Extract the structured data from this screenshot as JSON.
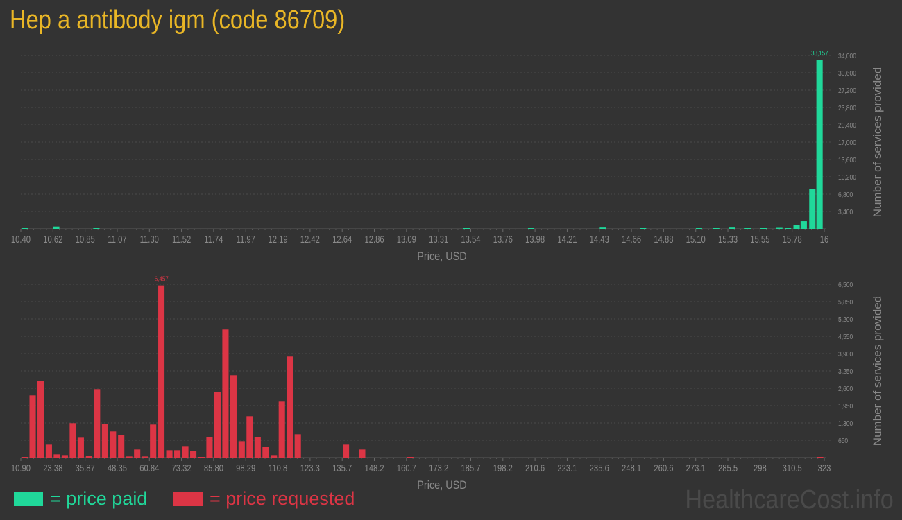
{
  "title": "Hep a antibody igm (code 86709)",
  "legend": {
    "paid_label": "= price paid",
    "requested_label": "= price requested"
  },
  "watermark": "HealthcareCost.info",
  "colors": {
    "paid": "#20d89a",
    "requested": "#dc3545",
    "title": "#e9b626",
    "background": "#333333"
  },
  "chart_data": [
    {
      "type": "bar",
      "series_role": "price paid",
      "xlabel": "Price, USD",
      "ylabel": "Number of services provided",
      "xlim": [
        10.4,
        16
      ],
      "ylim": [
        0,
        34000
      ],
      "grid": true,
      "x_ticks": [
        "10.40",
        "10.62",
        "10.85",
        "11.07",
        "11.30",
        "11.52",
        "11.74",
        "11.97",
        "12.19",
        "12.42",
        "12.64",
        "12.86",
        "13.09",
        "13.31",
        "13.54",
        "13.76",
        "13.98",
        "14.21",
        "14.43",
        "14.66",
        "14.88",
        "15.10",
        "15.33",
        "15.55",
        "15.78",
        "16"
      ],
      "y_ticks": [
        3400,
        6800,
        10200,
        13600,
        17000,
        20400,
        23800,
        27200,
        30600,
        34000
      ],
      "y_tick_labels": [
        "3,400",
        "6,800",
        "10,200",
        "13,600",
        "17,000",
        "20,400",
        "23,800",
        "27,200",
        "30,600",
        "34,000"
      ],
      "max_label": "33,157",
      "bin_width": 0.056,
      "bars": [
        {
          "x": 10.4,
          "y": 120
        },
        {
          "x": 10.62,
          "y": 450
        },
        {
          "x": 10.9,
          "y": 120
        },
        {
          "x": 13.48,
          "y": 120
        },
        {
          "x": 13.93,
          "y": 120
        },
        {
          "x": 14.43,
          "y": 250
        },
        {
          "x": 14.71,
          "y": 110
        },
        {
          "x": 15.1,
          "y": 110
        },
        {
          "x": 15.22,
          "y": 110
        },
        {
          "x": 15.33,
          "y": 250
        },
        {
          "x": 15.44,
          "y": 110
        },
        {
          "x": 15.55,
          "y": 110
        },
        {
          "x": 15.66,
          "y": 200
        },
        {
          "x": 15.72,
          "y": 110
        },
        {
          "x": 15.78,
          "y": 813
        },
        {
          "x": 15.83,
          "y": 1490
        },
        {
          "x": 15.89,
          "y": 7766
        },
        {
          "x": 15.94,
          "y": 33157
        }
      ]
    },
    {
      "type": "bar",
      "series_role": "price requested",
      "xlabel": "Price, USD",
      "ylabel": "Number of services provided",
      "xlim": [
        10.9,
        323
      ],
      "ylim": [
        0,
        6500
      ],
      "grid": true,
      "x_ticks": [
        "10.90",
        "23.38",
        "35.87",
        "48.35",
        "60.84",
        "73.32",
        "85.80",
        "98.29",
        "110.8",
        "123.3",
        "135.7",
        "148.2",
        "160.7",
        "173.2",
        "185.7",
        "198.2",
        "210.6",
        "223.1",
        "235.6",
        "248.1",
        "260.6",
        "273.1",
        "285.5",
        "298",
        "310.5",
        "323"
      ],
      "y_ticks": [
        650,
        1300,
        1950,
        2600,
        3250,
        3900,
        4550,
        5200,
        5850,
        6500
      ],
      "y_tick_labels": [
        "650",
        "1,300",
        "1,950",
        "2,600",
        "3,250",
        "3,900",
        "4,550",
        "5,200",
        "5,850",
        "6,500"
      ],
      "max_label": "6,457",
      "bin_width": 3.121,
      "bars": [
        {
          "x": 10.9,
          "y": 20
        },
        {
          "x": 14.0,
          "y": 2332
        },
        {
          "x": 17.1,
          "y": 2878
        },
        {
          "x": 20.3,
          "y": 485
        },
        {
          "x": 23.4,
          "y": 121
        },
        {
          "x": 26.5,
          "y": 95
        },
        {
          "x": 29.6,
          "y": 1292
        },
        {
          "x": 32.7,
          "y": 745
        },
        {
          "x": 35.9,
          "y": 69
        },
        {
          "x": 39.0,
          "y": 2566
        },
        {
          "x": 42.1,
          "y": 1266
        },
        {
          "x": 45.2,
          "y": 980
        },
        {
          "x": 48.4,
          "y": 850
        },
        {
          "x": 51.5,
          "y": 43
        },
        {
          "x": 54.6,
          "y": 303
        },
        {
          "x": 57.7,
          "y": 43
        },
        {
          "x": 60.8,
          "y": 1240
        },
        {
          "x": 64.0,
          "y": 6457
        },
        {
          "x": 67.1,
          "y": 277
        },
        {
          "x": 70.2,
          "y": 277
        },
        {
          "x": 73.3,
          "y": 433
        },
        {
          "x": 76.4,
          "y": 251
        },
        {
          "x": 79.6,
          "y": 17
        },
        {
          "x": 82.7,
          "y": 771
        },
        {
          "x": 85.8,
          "y": 2462
        },
        {
          "x": 88.9,
          "y": 4803
        },
        {
          "x": 92.0,
          "y": 3086
        },
        {
          "x": 95.2,
          "y": 615
        },
        {
          "x": 98.3,
          "y": 1552
        },
        {
          "x": 101.4,
          "y": 771
        },
        {
          "x": 104.5,
          "y": 407
        },
        {
          "x": 107.7,
          "y": 95
        },
        {
          "x": 110.8,
          "y": 2098
        },
        {
          "x": 113.9,
          "y": 3789
        },
        {
          "x": 117.0,
          "y": 875
        },
        {
          "x": 135.7,
          "y": 485
        },
        {
          "x": 142.0,
          "y": 303
        },
        {
          "x": 160.7,
          "y": 20
        },
        {
          "x": 319.9,
          "y": 20
        }
      ]
    }
  ]
}
